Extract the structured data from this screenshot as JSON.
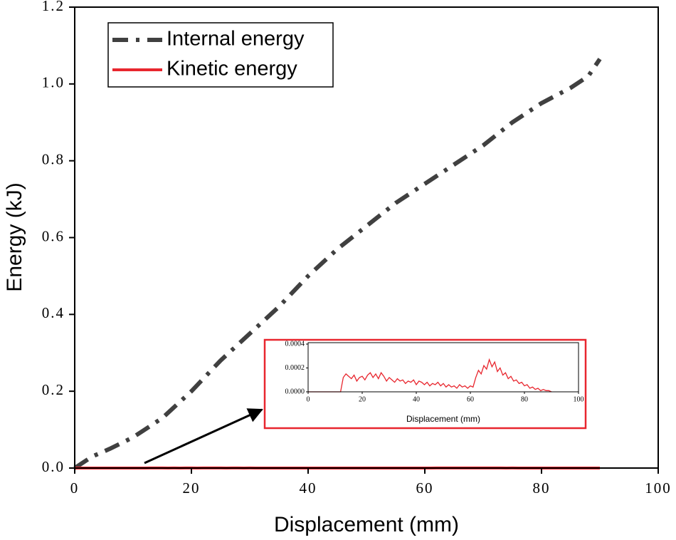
{
  "chart_data": {
    "type": "line",
    "xlabel": "Displacement (mm)",
    "ylabel": "Energy (kJ)",
    "xlim": [
      0,
      100
    ],
    "xticks": [
      0,
      20,
      40,
      60,
      80,
      100
    ],
    "ylim": [
      0,
      1.2
    ],
    "yticks": [
      {
        "value": 0,
        "label": "0.0"
      },
      0.2,
      0.4,
      0.6,
      0.8,
      {
        "value": 1,
        "label": "1.0"
      },
      1.2
    ],
    "legend": "upper left",
    "series": [
      {
        "name": "Internal energy",
        "color": "#404040",
        "style": "dashdot",
        "x": [
          0,
          3,
          6,
          10,
          12,
          15,
          20,
          25,
          30,
          35,
          40,
          45,
          50,
          55,
          60,
          65,
          70,
          75,
          80,
          85,
          88,
          90
        ],
        "values": [
          0,
          0.03,
          0.05,
          0.08,
          0.1,
          0.13,
          0.2,
          0.28,
          0.35,
          0.42,
          0.5,
          0.57,
          0.63,
          0.69,
          0.74,
          0.79,
          0.84,
          0.9,
          0.95,
          0.99,
          1.02,
          1.065
        ]
      },
      {
        "name": "Kinetic energy",
        "color": "#e8262e",
        "style": "solid",
        "x": [
          0,
          1,
          2,
          3,
          4,
          5,
          6,
          7,
          8,
          9,
          10,
          11,
          12,
          13,
          14,
          15,
          16,
          17,
          18,
          19,
          20,
          21,
          22,
          23,
          24,
          25,
          26,
          27,
          28,
          29,
          30,
          31,
          32,
          33,
          34,
          35,
          36,
          37,
          38,
          39,
          40,
          41,
          42,
          43,
          44,
          45,
          46,
          47,
          48,
          49,
          50,
          51,
          52,
          53,
          54,
          55,
          56,
          57,
          58,
          59,
          60,
          61,
          62,
          63,
          64,
          65,
          66,
          67,
          68,
          69,
          70,
          71,
          72,
          73,
          74,
          75,
          76,
          77,
          78,
          79,
          80,
          81,
          82,
          83,
          84,
          85,
          86,
          87,
          88,
          89,
          90
        ],
        "values": [
          0,
          0,
          0,
          0,
          0,
          0,
          0,
          0,
          0,
          0,
          0,
          0,
          0,
          0.00012,
          0.00015,
          0.00013,
          0.00011,
          0.00014,
          9e-05,
          0.00012,
          0.00013,
          0.0001,
          0.00014,
          0.00016,
          0.00012,
          0.00015,
          0.00011,
          0.00016,
          0.00013,
          9e-05,
          0.00012,
          0.0001,
          8e-05,
          0.00011,
          9e-05,
          0.0001,
          7e-05,
          9e-05,
          8e-05,
          0.0001,
          6e-05,
          9e-05,
          8e-05,
          6e-05,
          8e-05,
          5e-05,
          7e-05,
          6e-05,
          8e-05,
          5e-05,
          7e-05,
          4e-05,
          6e-05,
          4e-05,
          5e-05,
          3e-05,
          6e-05,
          4e-05,
          5e-05,
          3e-05,
          5e-05,
          4e-05,
          0.00012,
          0.00018,
          0.00015,
          0.00022,
          0.00019,
          0.00027,
          0.00021,
          0.00025,
          0.00017,
          0.0002,
          0.00014,
          0.00016,
          0.00011,
          0.00013,
          9e-05,
          0.0001,
          7e-05,
          8e-05,
          5e-05,
          6e-05,
          3e-05,
          4e-05,
          2e-05,
          3e-05,
          1e-05,
          2e-05,
          1e-05,
          1e-05,
          0
        ]
      }
    ],
    "inset": {
      "series_index": 1,
      "xlabel": "Displacement (mm)",
      "xlim": [
        0,
        100
      ],
      "xticks": [
        0,
        20,
        40,
        60,
        80,
        100
      ],
      "ylim": [
        0,
        0.0004
      ],
      "yticks": [
        {
          "value": 0,
          "label": "0.0000"
        },
        {
          "value": 0.0002,
          "label": "0.0002"
        },
        {
          "value": 0.0004,
          "label": "0.0004"
        }
      ],
      "frame_color": "#e8262e"
    }
  }
}
